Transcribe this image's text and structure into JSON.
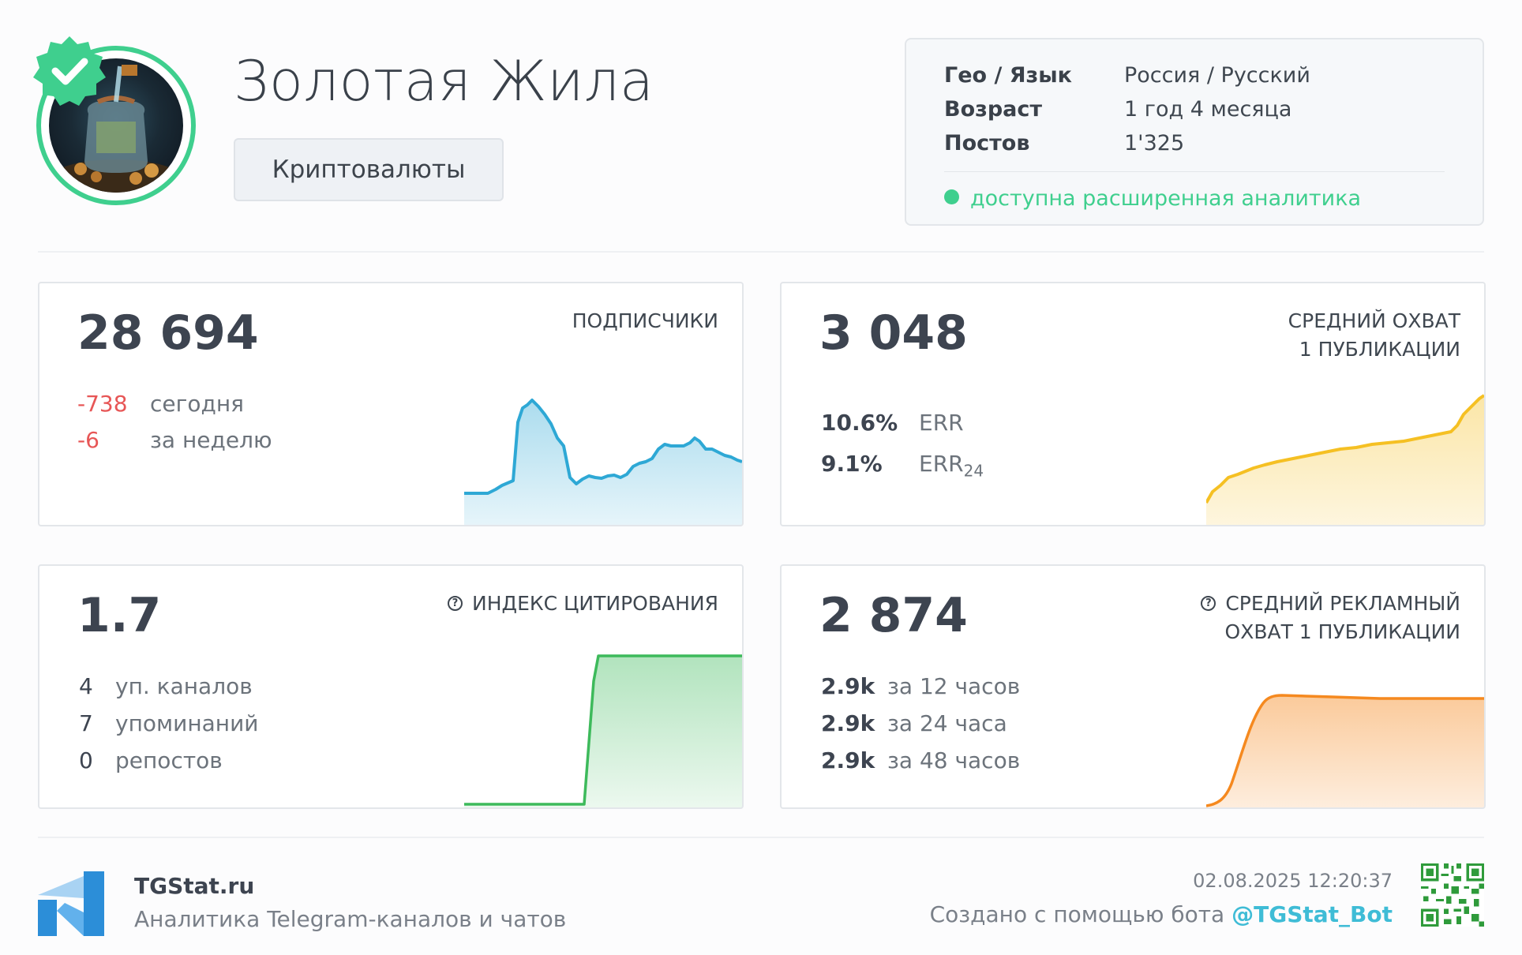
{
  "channel": {
    "title": "Золотая Жила",
    "category": "Криптовалюты"
  },
  "info": {
    "rows": [
      {
        "key": "Гео / Язык",
        "value": "Россия / Русский"
      },
      {
        "key": "Возраст",
        "value": "1 год 4 месяца"
      },
      {
        "key": "Постов",
        "value": "1'325"
      }
    ],
    "status": "доступна расширенная аналитика"
  },
  "cards": {
    "subscribers": {
      "value": "28 694",
      "label": "ПОДПИСЧИКИ",
      "today_value": "-738",
      "today_label": "сегодня",
      "week_value": "-6",
      "week_label": "за неделю",
      "color": "#2ea8d5"
    },
    "reach": {
      "value": "3 048",
      "label_line1": "СРЕДНИЙ ОХВАТ",
      "label_line2": "1 ПУБЛИКАЦИИ",
      "err_value": "10.6%",
      "err_label": "ERR",
      "err24_value": "9.1%",
      "err24_label": "ERR",
      "err24_sub": "24",
      "color": "#f5c023"
    },
    "citation": {
      "value": "1.7",
      "label": "ИНДЕКС ЦИТИРОВАНИЯ",
      "rows": [
        {
          "n": "4",
          "t": "уп. каналов"
        },
        {
          "n": "7",
          "t": "упоминаний"
        },
        {
          "n": "0",
          "t": "репостов"
        }
      ],
      "color": "#3dba5b"
    },
    "ad_reach": {
      "value": "2 874",
      "label_line1": "СРЕДНИЙ РЕКЛАМНЫЙ",
      "label_line2": "ОХВАТ 1 ПУБЛИКАЦИИ",
      "rows": [
        {
          "n": "2.9k",
          "t": "за 12 часов"
        },
        {
          "n": "2.9k",
          "t": "за 24 часа"
        },
        {
          "n": "2.9k",
          "t": "за 48 часов"
        }
      ],
      "color": "#f5891f"
    }
  },
  "footer": {
    "brand": "TGStat.ru",
    "tagline": "Аналитика Telegram-каналов и чатов",
    "timestamp": "02.08.2025 12:20:37",
    "created_prefix": "Создано с помощью бота",
    "bot": "@TGStat_Bot"
  },
  "icons": {
    "verified": "verified-badge-icon",
    "help": "question-circle-icon",
    "logo": "tgstat-logo-icon",
    "qr": "qr-code-icon"
  }
}
